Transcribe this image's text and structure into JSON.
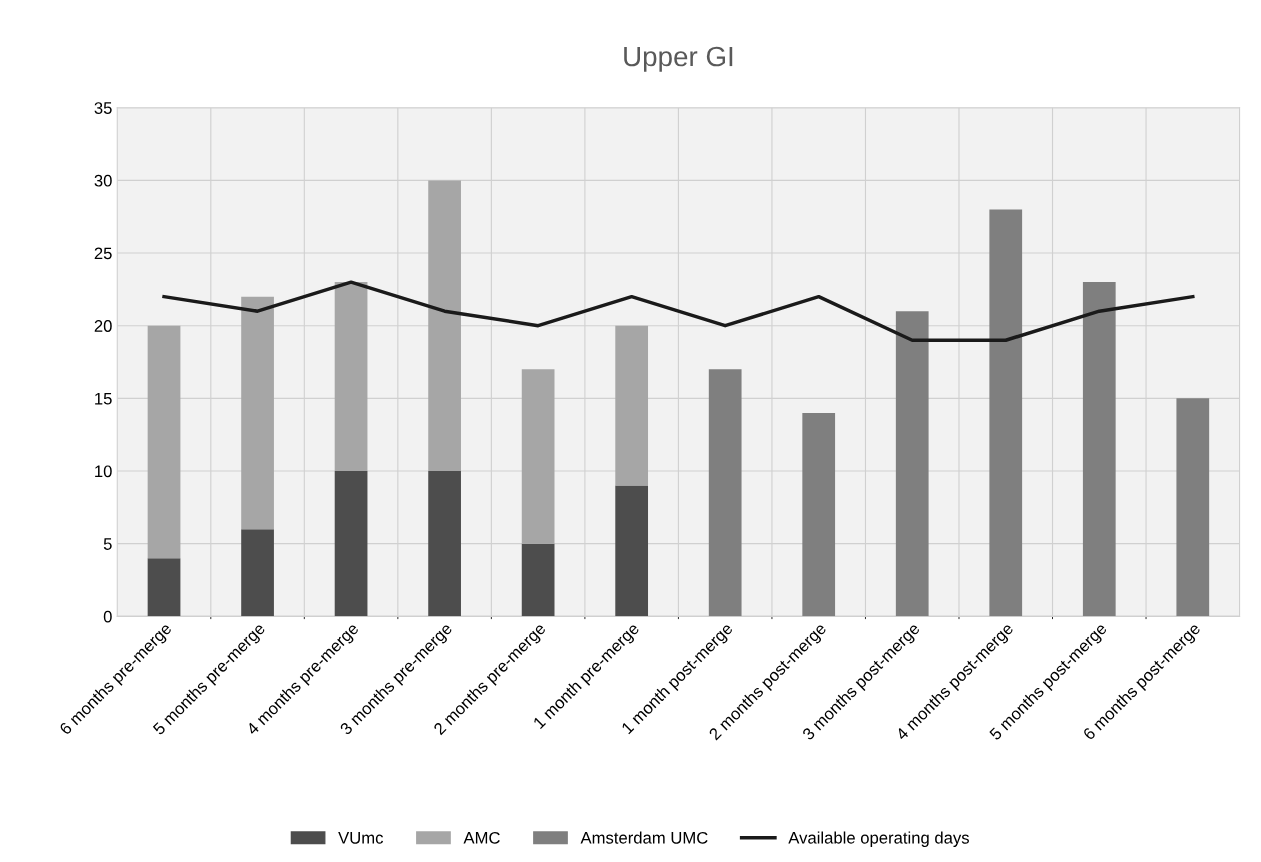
{
  "chart_data": {
    "type": "bar",
    "title": "Upper GI",
    "stacked": true,
    "categories": [
      "6 months pre-merge",
      "5 months pre-merge",
      "4 months pre-merge",
      "3 months pre-merge",
      "2 months pre-merge",
      "1 month pre-merge",
      "1 month post-merge",
      "2 months post-merge",
      "3 months post-merge",
      "4 months post-merge",
      "5 months post-merge",
      "6 months post-merge"
    ],
    "series": [
      {
        "name": "VUmc",
        "color": "#4d4d4d",
        "values": [
          4,
          6,
          10,
          10,
          5,
          9,
          null,
          null,
          null,
          null,
          null,
          null
        ]
      },
      {
        "name": "AMC",
        "color": "#a6a6a6",
        "values": [
          16,
          16,
          13,
          20,
          12,
          11,
          null,
          null,
          null,
          null,
          null,
          null
        ]
      },
      {
        "name": "Amsterdam UMC",
        "color": "#7f7f7f",
        "values": [
          null,
          null,
          null,
          null,
          null,
          null,
          17,
          14,
          21,
          28,
          23,
          15
        ]
      },
      {
        "name": "Available operating days",
        "type": "line",
        "color": "#1a1a1a",
        "values": [
          22,
          21,
          23,
          21,
          20,
          22,
          20,
          22,
          19,
          19,
          21,
          22
        ]
      }
    ],
    "ylim": [
      0,
      35
    ],
    "yticks": [
      0,
      5,
      10,
      15,
      20,
      25,
      30,
      35
    ],
    "grid": true,
    "legend": "bottom",
    "marker": "none",
    "line_style": "solid"
  }
}
